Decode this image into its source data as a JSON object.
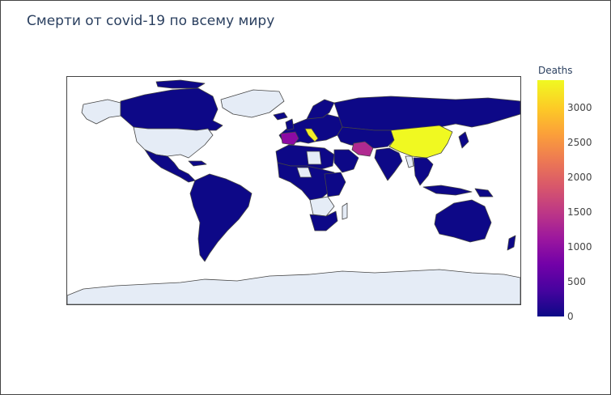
{
  "title": "Смерти от covid-19 по всему миру",
  "colorbar": {
    "title": "Deaths",
    "min": 0,
    "max": 3400,
    "ticks": [
      {
        "value": 0,
        "label": "0"
      },
      {
        "value": 500,
        "label": "500"
      },
      {
        "value": 1000,
        "label": "1000"
      },
      {
        "value": 1500,
        "label": "1500"
      },
      {
        "value": 2000,
        "label": "2000"
      },
      {
        "value": 2500,
        "label": "2500"
      },
      {
        "value": 3000,
        "label": "3000"
      }
    ]
  },
  "colors": {
    "low": "#0d0887",
    "no_data": "#e5ecf6",
    "borders": "#444444",
    "high": "#f0f921"
  },
  "chart_data": {
    "type": "heatmap",
    "projection": "equirectangular choropleth",
    "value_label": "Deaths",
    "highlighted_regions": [
      {
        "name": "China",
        "deaths": 3350
      },
      {
        "name": "Iran",
        "deaths": 1200
      },
      {
        "name": "Italy",
        "deaths": 3200
      },
      {
        "name": "Spain",
        "deaths": 900
      }
    ]
  }
}
